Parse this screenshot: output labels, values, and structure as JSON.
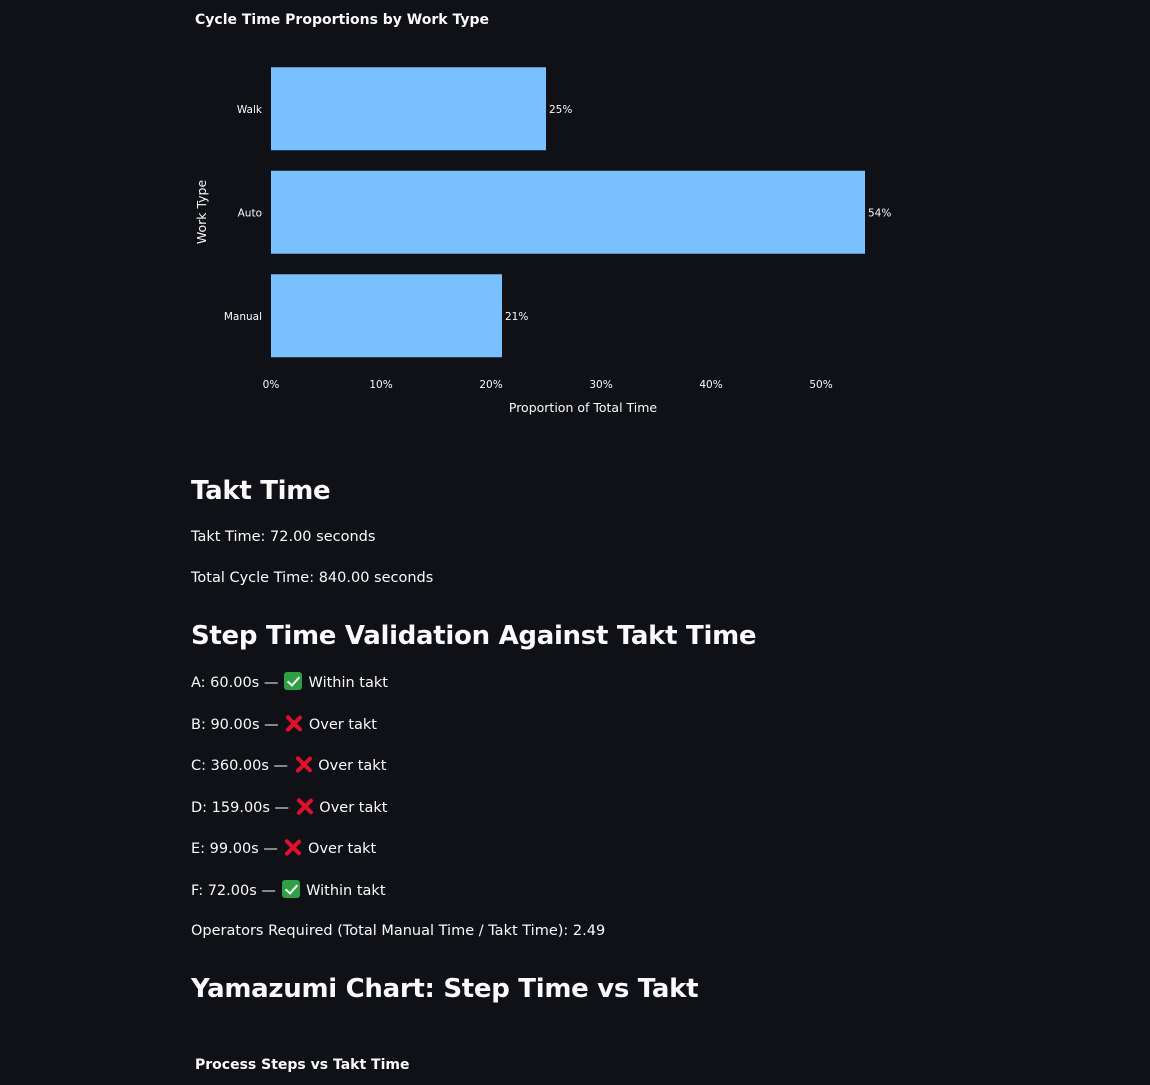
{
  "chart_data": {
    "type": "bar",
    "orientation": "horizontal",
    "title": "Cycle Time Proportions by Work Type",
    "xlabel": "Proportion of Total Time",
    "ylabel": "Work Type",
    "categories": [
      "Walk",
      "Auto",
      "Manual"
    ],
    "values": [
      25,
      54,
      21
    ],
    "value_labels": [
      "25%",
      "54%",
      "21%"
    ],
    "xlim": [
      0,
      57
    ],
    "xticks": [
      0,
      10,
      20,
      30,
      40,
      50
    ],
    "xtick_labels": [
      "0%",
      "10%",
      "20%",
      "30%",
      "40%",
      "50%"
    ],
    "bar_color": "#79c0ff",
    "grid": false
  },
  "takt": {
    "heading": "Takt Time",
    "takt_line": "Takt Time: 72.00 seconds",
    "cycle_line": "Total Cycle Time: 840.00 seconds"
  },
  "validation": {
    "heading": "Step Time Validation Against Takt Time",
    "steps": [
      {
        "prefix": "A: 60.00s —",
        "status": "check",
        "label": "Within takt"
      },
      {
        "prefix": "B: 90.00s —",
        "status": "cross",
        "label": "Over takt"
      },
      {
        "prefix": "C: 360.00s —",
        "status": "cross",
        "label": "Over takt"
      },
      {
        "prefix": "D: 159.00s —",
        "status": "cross",
        "label": "Over takt"
      },
      {
        "prefix": "E: 99.00s —",
        "status": "cross",
        "label": "Over takt"
      },
      {
        "prefix": "F: 72.00s —",
        "status": "check",
        "label": "Within takt"
      }
    ],
    "operators_line": "Operators Required (Total Manual Time / Takt Time): 2.49"
  },
  "yamazumi": {
    "heading": "Yamazumi Chart: Step Time vs Takt",
    "chart_title": "Process Steps vs Takt Time"
  },
  "colors": {
    "background": "#0f1117",
    "text": "#fafafa",
    "bar": "#79c0ff",
    "check": "#2ea043",
    "cross": "#e0102a"
  }
}
